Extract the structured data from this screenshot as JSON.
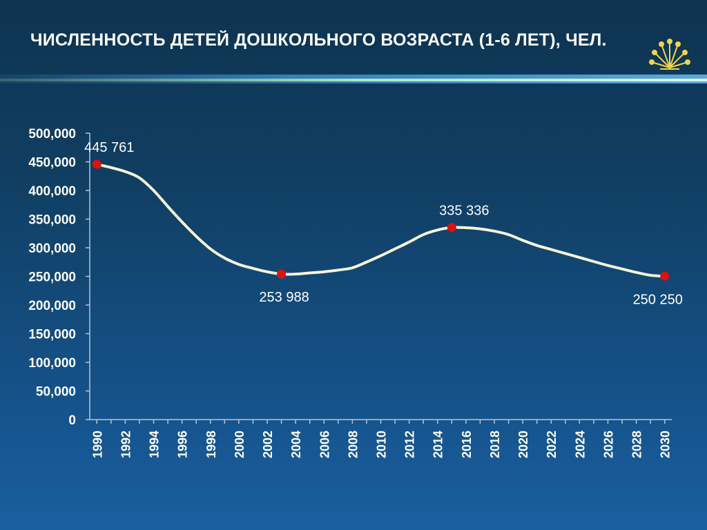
{
  "slide": {
    "title": "ЧИСЛЕННОСТЬ ДЕТЕЙ ДОШКОЛЬНОГО ВОЗРАСТА (1-6 ЛЕТ), ЧЕЛ.",
    "accent_color": "#f2d44a",
    "logo_icon": "sunburst-logo-icon"
  },
  "chart_data": {
    "type": "line",
    "x": [
      1990,
      1991,
      1992,
      1993,
      1994,
      1995,
      1996,
      1997,
      1998,
      1999,
      2000,
      2001,
      2002,
      2003,
      2004,
      2005,
      2006,
      2007,
      2008,
      2009,
      2010,
      2011,
      2012,
      2013,
      2014,
      2015,
      2016,
      2017,
      2018,
      2019,
      2020,
      2021,
      2022,
      2023,
      2024,
      2025,
      2026,
      2027,
      2028,
      2029,
      2030
    ],
    "series": [
      {
        "values": [
          445761,
          440000,
          433000,
          422000,
          400000,
          372000,
          345000,
          320000,
          298000,
          282000,
          271000,
          264000,
          258000,
          253988,
          254000,
          256000,
          258000,
          261000,
          265000,
          275000,
          286000,
          298000,
          310000,
          323000,
          331000,
          335336,
          335000,
          333000,
          329000,
          323000,
          313000,
          304000,
          297000,
          290000,
          283000,
          276000,
          269000,
          263000,
          257000,
          252000,
          250250
        ],
        "color": "#f5f5d8",
        "markers": [
          {
            "x": 1990,
            "value": 445761,
            "label": "445 761",
            "label_pos": "above"
          },
          {
            "x": 2003,
            "value": 253988,
            "label": "253 988",
            "label_pos": "below"
          },
          {
            "x": 2015,
            "value": 335336,
            "label": "335 336",
            "label_pos": "above"
          },
          {
            "x": 2030,
            "value": 250250,
            "label": "250 250",
            "label_pos": "below"
          }
        ],
        "marker_color": "#dd1111"
      }
    ],
    "xticks": [
      "1990",
      "1992",
      "1994",
      "1996",
      "1998",
      "2000",
      "2002",
      "2004",
      "2006",
      "2008",
      "2010",
      "2012",
      "2014",
      "2016",
      "2018",
      "2020",
      "2022",
      "2024",
      "2026",
      "2028",
      "2030"
    ],
    "yticks": [
      "0",
      "50,000",
      "100,000",
      "150,000",
      "200,000",
      "250,000",
      "300,000",
      "350,000",
      "400,000",
      "450,000",
      "500,000"
    ],
    "ylim": [
      0,
      500000
    ],
    "xlim": [
      1989.5,
      2030.5
    ],
    "grid": false,
    "axis_color": "#b8c6d4"
  }
}
